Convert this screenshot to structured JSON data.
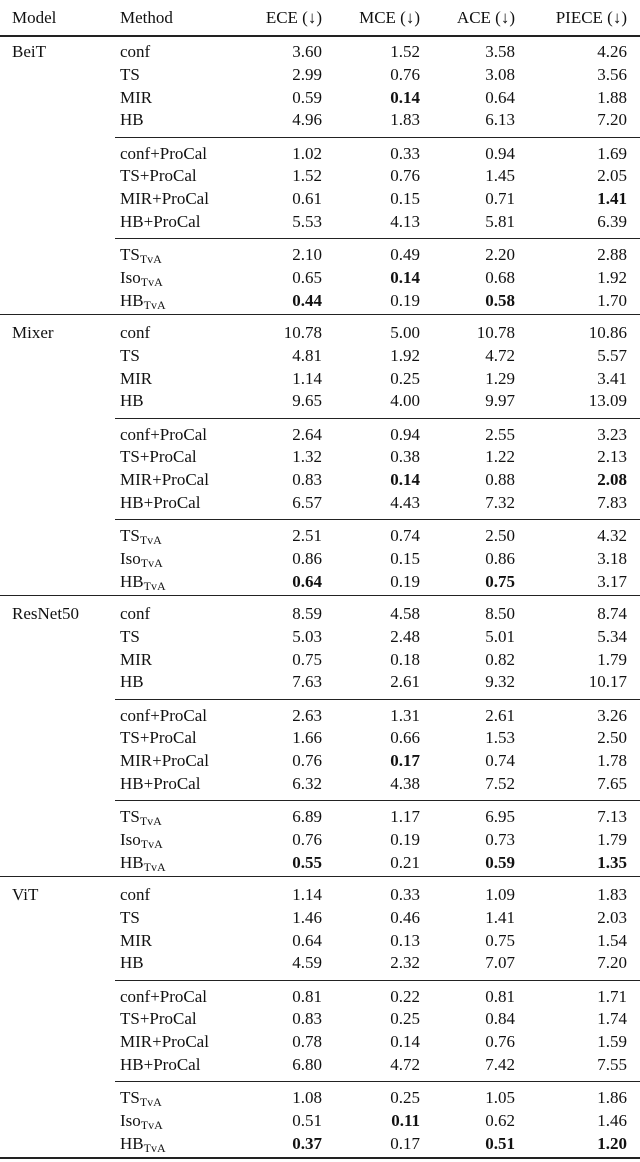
{
  "table": {
    "header": [
      "Model",
      "Method",
      "ECE (↓)",
      "MCE (↓)",
      "ACE (↓)",
      "PIECE (↓)"
    ],
    "sections": [
      {
        "model": "BeiT",
        "groups": [
          [
            {
              "method": "conf",
              "values": [
                "3.60",
                "1.52",
                "3.58",
                "4.26"
              ]
            },
            {
              "method": "TS",
              "values": [
                "2.99",
                "0.76",
                "3.08",
                "3.56"
              ]
            },
            {
              "method": "MIR",
              "values": [
                "0.59",
                "0.14",
                "0.64",
                "1.88"
              ],
              "bold": [
                1
              ]
            },
            {
              "method": "HB",
              "values": [
                "4.96",
                "1.83",
                "6.13",
                "7.20"
              ]
            }
          ],
          [
            {
              "method": "conf+ProCal",
              "values": [
                "1.02",
                "0.33",
                "0.94",
                "1.69"
              ]
            },
            {
              "method": "TS+ProCal",
              "values": [
                "1.52",
                "0.76",
                "1.45",
                "2.05"
              ]
            },
            {
              "method": "MIR+ProCal",
              "values": [
                "0.61",
                "0.15",
                "0.71",
                "1.41"
              ],
              "bold": [
                3
              ]
            },
            {
              "method": "HB+ProCal",
              "values": [
                "5.53",
                "4.13",
                "5.81",
                "6.39"
              ]
            }
          ],
          [
            {
              "method": "TS",
              "sub": "TvA",
              "values": [
                "2.10",
                "0.49",
                "2.20",
                "2.88"
              ]
            },
            {
              "method": "Iso",
              "sub": "TvA",
              "values": [
                "0.65",
                "0.14",
                "0.68",
                "1.92"
              ],
              "bold": [
                1
              ]
            },
            {
              "method": "HB",
              "sub": "TvA",
              "values": [
                "0.44",
                "0.19",
                "0.58",
                "1.70"
              ],
              "bold": [
                0,
                2
              ]
            }
          ]
        ]
      },
      {
        "model": "Mixer",
        "groups": [
          [
            {
              "method": "conf",
              "values": [
                "10.78",
                "5.00",
                "10.78",
                "10.86"
              ]
            },
            {
              "method": "TS",
              "values": [
                "4.81",
                "1.92",
                "4.72",
                "5.57"
              ]
            },
            {
              "method": "MIR",
              "values": [
                "1.14",
                "0.25",
                "1.29",
                "3.41"
              ]
            },
            {
              "method": "HB",
              "values": [
                "9.65",
                "4.00",
                "9.97",
                "13.09"
              ]
            }
          ],
          [
            {
              "method": "conf+ProCal",
              "values": [
                "2.64",
                "0.94",
                "2.55",
                "3.23"
              ]
            },
            {
              "method": "TS+ProCal",
              "values": [
                "1.32",
                "0.38",
                "1.22",
                "2.13"
              ]
            },
            {
              "method": "MIR+ProCal",
              "values": [
                "0.83",
                "0.14",
                "0.88",
                "2.08"
              ],
              "bold": [
                1,
                3
              ]
            },
            {
              "method": "HB+ProCal",
              "values": [
                "6.57",
                "4.43",
                "7.32",
                "7.83"
              ]
            }
          ],
          [
            {
              "method": "TS",
              "sub": "TvA",
              "values": [
                "2.51",
                "0.74",
                "2.50",
                "4.32"
              ]
            },
            {
              "method": "Iso",
              "sub": "TvA",
              "values": [
                "0.86",
                "0.15",
                "0.86",
                "3.18"
              ]
            },
            {
              "method": "HB",
              "sub": "TvA",
              "values": [
                "0.64",
                "0.19",
                "0.75",
                "3.17"
              ],
              "bold": [
                0,
                2
              ]
            }
          ]
        ]
      },
      {
        "model": "ResNet50",
        "groups": [
          [
            {
              "method": "conf",
              "values": [
                "8.59",
                "4.58",
                "8.50",
                "8.74"
              ]
            },
            {
              "method": "TS",
              "values": [
                "5.03",
                "2.48",
                "5.01",
                "5.34"
              ]
            },
            {
              "method": "MIR",
              "values": [
                "0.75",
                "0.18",
                "0.82",
                "1.79"
              ]
            },
            {
              "method": "HB",
              "values": [
                "7.63",
                "2.61",
                "9.32",
                "10.17"
              ]
            }
          ],
          [
            {
              "method": "conf+ProCal",
              "values": [
                "2.63",
                "1.31",
                "2.61",
                "3.26"
              ]
            },
            {
              "method": "TS+ProCal",
              "values": [
                "1.66",
                "0.66",
                "1.53",
                "2.50"
              ]
            },
            {
              "method": "MIR+ProCal",
              "values": [
                "0.76",
                "0.17",
                "0.74",
                "1.78"
              ],
              "bold": [
                1
              ]
            },
            {
              "method": "HB+ProCal",
              "values": [
                "6.32",
                "4.38",
                "7.52",
                "7.65"
              ]
            }
          ],
          [
            {
              "method": "TS",
              "sub": "TvA",
              "values": [
                "6.89",
                "1.17",
                "6.95",
                "7.13"
              ]
            },
            {
              "method": "Iso",
              "sub": "TvA",
              "values": [
                "0.76",
                "0.19",
                "0.73",
                "1.79"
              ]
            },
            {
              "method": "HB",
              "sub": "TvA",
              "values": [
                "0.55",
                "0.21",
                "0.59",
                "1.35"
              ],
              "bold": [
                0,
                2,
                3
              ]
            }
          ]
        ]
      },
      {
        "model": "ViT",
        "groups": [
          [
            {
              "method": "conf",
              "values": [
                "1.14",
                "0.33",
                "1.09",
                "1.83"
              ]
            },
            {
              "method": "TS",
              "values": [
                "1.46",
                "0.46",
                "1.41",
                "2.03"
              ]
            },
            {
              "method": "MIR",
              "values": [
                "0.64",
                "0.13",
                "0.75",
                "1.54"
              ]
            },
            {
              "method": "HB",
              "values": [
                "4.59",
                "2.32",
                "7.07",
                "7.20"
              ]
            }
          ],
          [
            {
              "method": "conf+ProCal",
              "values": [
                "0.81",
                "0.22",
                "0.81",
                "1.71"
              ]
            },
            {
              "method": "TS+ProCal",
              "values": [
                "0.83",
                "0.25",
                "0.84",
                "1.74"
              ]
            },
            {
              "method": "MIR+ProCal",
              "values": [
                "0.78",
                "0.14",
                "0.76",
                "1.59"
              ]
            },
            {
              "method": "HB+ProCal",
              "values": [
                "6.80",
                "4.72",
                "7.42",
                "7.55"
              ]
            }
          ],
          [
            {
              "method": "TS",
              "sub": "TvA",
              "values": [
                "1.08",
                "0.25",
                "1.05",
                "1.86"
              ]
            },
            {
              "method": "Iso",
              "sub": "TvA",
              "values": [
                "0.51",
                "0.11",
                "0.62",
                "1.46"
              ],
              "bold": [
                1
              ]
            },
            {
              "method": "HB",
              "sub": "TvA",
              "values": [
                "0.37",
                "0.17",
                "0.51",
                "1.20"
              ],
              "bold": [
                0,
                2,
                3
              ]
            }
          ]
        ]
      }
    ]
  }
}
